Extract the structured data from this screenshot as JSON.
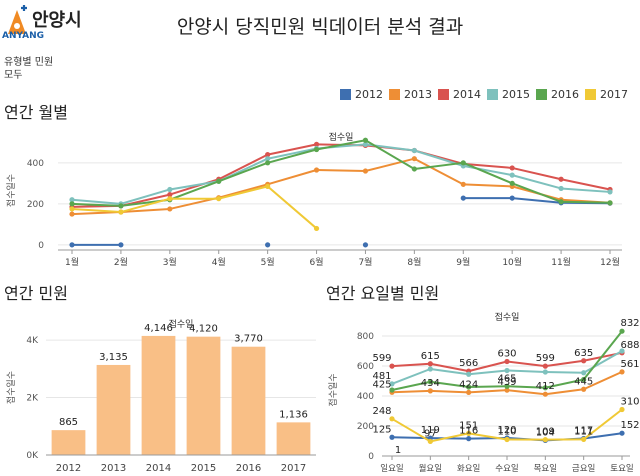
{
  "header": {
    "logo_text": "안양시",
    "logo_sub": "ANYANG",
    "title": "안양시 당직민원 빅데이터 분석 결과",
    "filter_label": "유형별 민원",
    "filter_value": "모두"
  },
  "sections": {
    "monthly": "연간 월별",
    "annual": "연간 민원",
    "weekday": "연간 요일별 민원"
  },
  "colors": {
    "2012": "#3e6fb0",
    "2013": "#ee8e35",
    "2014": "#d9534f",
    "2015": "#7ec1bd",
    "2016": "#5aa64f",
    "2017": "#f0c935",
    "bar": "#f9bf86",
    "grid": "#e6e6e6",
    "axis": "#999999",
    "logo_orange": "#f08a24",
    "logo_blue": "#1b5fa8"
  },
  "legend": [
    "2012",
    "2013",
    "2014",
    "2015",
    "2016",
    "2017"
  ],
  "chart_data": [
    {
      "type": "line",
      "title": "접수일",
      "ylabel": "접수일수",
      "categories": [
        "1월",
        "2월",
        "3월",
        "4월",
        "5월",
        "6월",
        "7월",
        "8월",
        "9월",
        "10월",
        "11월",
        "12월"
      ],
      "yticks": [
        0,
        200,
        400
      ],
      "ylim": [
        -30,
        560
      ],
      "grid": true,
      "series": [
        {
          "name": "2012",
          "values": [
            0,
            0,
            null,
            null,
            0,
            null,
            0,
            null,
            228,
            228,
            205,
            203
          ]
        },
        {
          "name": "2013",
          "values": [
            150,
            160,
            175,
            230,
            295,
            365,
            360,
            420,
            295,
            285,
            220,
            205
          ]
        },
        {
          "name": "2014",
          "values": [
            185,
            190,
            245,
            320,
            440,
            490,
            485,
            460,
            395,
            375,
            320,
            270
          ]
        },
        {
          "name": "2015",
          "values": [
            220,
            200,
            270,
            310,
            420,
            470,
            490,
            460,
            385,
            340,
            275,
            258
          ]
        },
        {
          "name": "2016",
          "values": [
            200,
            190,
            220,
            310,
            400,
            465,
            510,
            370,
            400,
            300,
            210,
            205
          ]
        },
        {
          "name": "2017",
          "values": [
            175,
            160,
            225,
            225,
            285,
            80,
            null,
            null,
            null,
            null,
            null,
            null
          ]
        }
      ]
    },
    {
      "type": "bar",
      "title": "접수일",
      "ylabel": "접수일수",
      "categories": [
        "2012",
        "2013",
        "2014",
        "2015",
        "2016",
        "2017"
      ],
      "values": [
        865,
        3135,
        4146,
        4120,
        3770,
        1136
      ],
      "labels": [
        "865",
        "3,135",
        "4,146",
        "4,120",
        "3,770",
        "1,136"
      ],
      "yticks": [
        0,
        2000,
        4000
      ],
      "ytick_labels": [
        "0K",
        "2K",
        "4K"
      ],
      "ylim": [
        0,
        4700
      ],
      "grid": true
    },
    {
      "type": "line",
      "title": "접수일",
      "ylabel": "접수일수",
      "categories": [
        "일요일",
        "월요일",
        "화요일",
        "수요일",
        "목요일",
        "금요일",
        "토요일"
      ],
      "yticks": [
        0,
        200,
        400,
        600,
        800
      ],
      "ylim": [
        0,
        880
      ],
      "grid": true,
      "series": [
        {
          "name": "2012",
          "values": [
            125,
            119,
            116,
            120,
            104,
            117,
            152
          ]
        },
        {
          "name": "2013",
          "values": [
            425,
            434,
            424,
            439,
            412,
            445,
            561
          ]
        },
        {
          "name": "2014",
          "values": [
            599,
            615,
            566,
            630,
            599,
            635,
            688
          ]
        },
        {
          "name": "2015",
          "values": [
            481,
            580,
            545,
            570,
            560,
            555,
            700
          ]
        },
        {
          "name": "2016",
          "values": [
            440,
            495,
            460,
            465,
            455,
            510,
            832
          ]
        },
        {
          "name": "2017",
          "values": [
            248,
            97,
            151,
            110,
            109,
            111,
            310
          ]
        }
      ],
      "data_labels": [
        {
          "series": "2012",
          "index": 0,
          "text": "125"
        },
        {
          "series": "2012",
          "index": 1,
          "text": "119"
        },
        {
          "series": "2012",
          "index": 2,
          "text": "116"
        },
        {
          "series": "2012",
          "index": 3,
          "text": "120"
        },
        {
          "series": "2012",
          "index": 4,
          "text": "104"
        },
        {
          "series": "2012",
          "index": 5,
          "text": "117"
        },
        {
          "series": "2012",
          "index": 6,
          "text": "152"
        },
        {
          "series": "2013",
          "index": 0,
          "text": "425"
        },
        {
          "series": "2013",
          "index": 1,
          "text": "434"
        },
        {
          "series": "2013",
          "index": 2,
          "text": "424"
        },
        {
          "series": "2013",
          "index": 3,
          "text": "439"
        },
        {
          "series": "2013",
          "index": 4,
          "text": "412"
        },
        {
          "series": "2013",
          "index": 5,
          "text": "445"
        },
        {
          "series": "2013",
          "index": 6,
          "text": "561"
        },
        {
          "series": "2014",
          "index": 0,
          "text": "599"
        },
        {
          "series": "2014",
          "index": 1,
          "text": "615"
        },
        {
          "series": "2014",
          "index": 2,
          "text": "566"
        },
        {
          "series": "2014",
          "index": 3,
          "text": "630"
        },
        {
          "series": "2014",
          "index": 4,
          "text": "599"
        },
        {
          "series": "2014",
          "index": 5,
          "text": "635"
        },
        {
          "series": "2014",
          "index": 6,
          "text": "688"
        },
        {
          "series": "2015",
          "index": 0,
          "text": "481"
        },
        {
          "series": "2016",
          "index": 3,
          "text": "465"
        },
        {
          "series": "2016",
          "index": 6,
          "text": "832"
        },
        {
          "series": "2017",
          "index": 0,
          "text": "248"
        },
        {
          "series": "2017",
          "index": 1,
          "text": "97"
        },
        {
          "series": "2017",
          "index": 2,
          "text": "151"
        },
        {
          "series": "2017",
          "index": 3,
          "text": "110"
        },
        {
          "series": "2017",
          "index": 4,
          "text": "109"
        },
        {
          "series": "2017",
          "index": 5,
          "text": "111"
        },
        {
          "series": "2017",
          "index": 6,
          "text": "310"
        }
      ],
      "extra_labels": [
        "1"
      ]
    }
  ]
}
